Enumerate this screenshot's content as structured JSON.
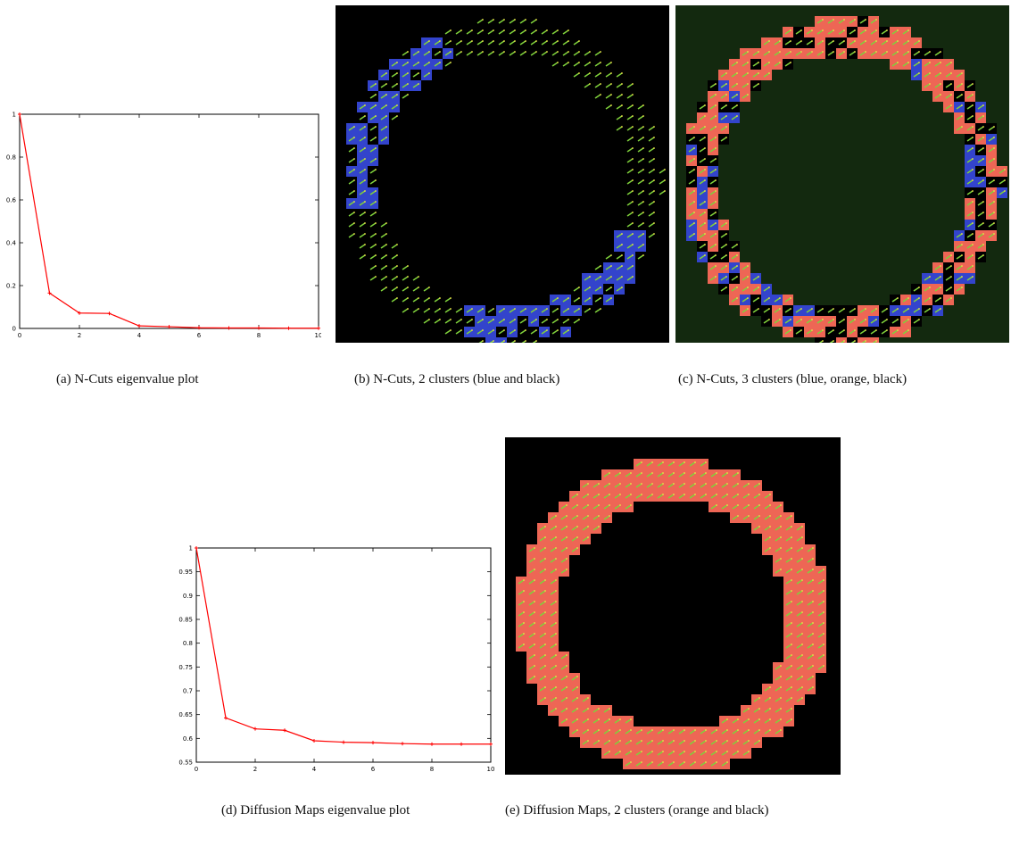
{
  "chart_data": [
    {
      "type": "line",
      "x": [
        0,
        1,
        2,
        3,
        4,
        5,
        6,
        7,
        8,
        9,
        10
      ],
      "values": [
        1.0,
        0.165,
        0.072,
        0.07,
        0.012,
        0.008,
        0.003,
        0.002,
        0.002,
        0.001,
        0.001
      ],
      "xlim": [
        0,
        10
      ],
      "ylim": [
        0,
        1
      ],
      "xticks": [
        "0",
        "2",
        "4",
        "6",
        "8",
        "10"
      ],
      "yticks": [
        "0",
        "0.2",
        "0.4",
        "0.6",
        "0.8",
        "1"
      ],
      "color": "#ff0000",
      "grid": false
    },
    {
      "type": "line",
      "x": [
        0,
        1,
        2,
        3,
        4,
        5,
        6,
        7,
        8,
        9,
        10
      ],
      "values": [
        1.0,
        0.643,
        0.62,
        0.617,
        0.595,
        0.592,
        0.591,
        0.589,
        0.588,
        0.588,
        0.588
      ],
      "xlim": [
        0,
        10
      ],
      "ylim": [
        0.55,
        1
      ],
      "xticks": [
        "0",
        "2",
        "4",
        "6",
        "8",
        "10"
      ],
      "yticks": [
        "0.55",
        "0.6",
        "0.65",
        "0.7",
        "0.75",
        "0.8",
        "0.85",
        "0.9",
        "0.95",
        "1"
      ],
      "color": "#ff0000",
      "grid": false
    }
  ],
  "captions": {
    "a": "(a)  N-Cuts eigenvalue plot",
    "b": "(b)  N-Cuts, 2 clusters (blue and black)",
    "c": "(c)  N-Cuts, 3 clusters (blue, orange, black)",
    "d": "(d)  Diffusion Maps eigenvalue plot",
    "e": "(e)  Diffusion Maps, 2 clusters (orange and black)"
  },
  "colors": {
    "blue": "#3344cc",
    "orange": "#ee6655",
    "black": "#000000",
    "dark_green": "#13290f",
    "glyph_green": "#7fd13b",
    "line_red": "#ff0000"
  }
}
